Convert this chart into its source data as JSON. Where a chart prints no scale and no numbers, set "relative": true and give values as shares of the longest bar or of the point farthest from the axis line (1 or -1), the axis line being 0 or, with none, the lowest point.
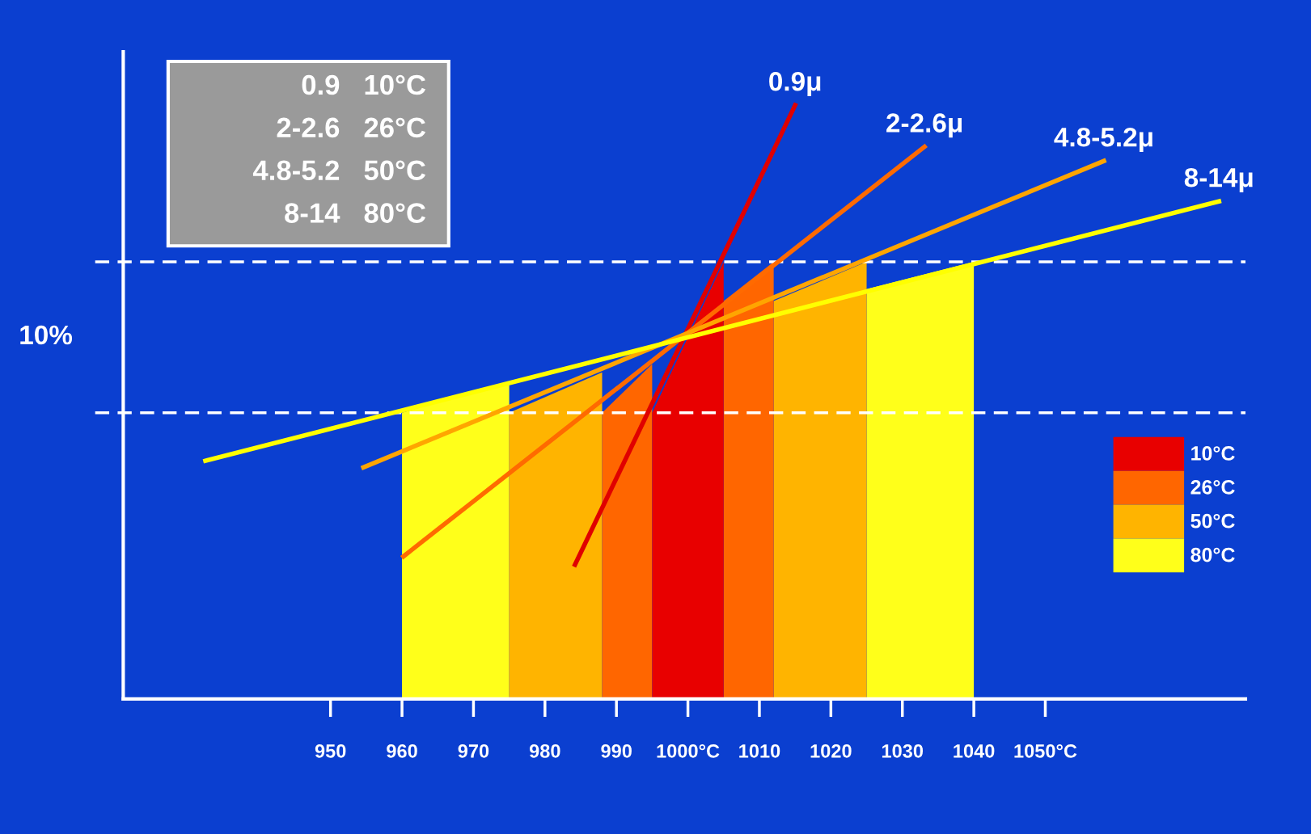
{
  "chart_data": {
    "type": "line",
    "relative": true,
    "xlim": [
      921,
      1078
    ],
    "xticks": [
      {
        "value": 950,
        "label": "950"
      },
      {
        "value": 960,
        "label": "960"
      },
      {
        "value": 970,
        "label": "970"
      },
      {
        "value": 980,
        "label": "980"
      },
      {
        "value": 990,
        "label": "990"
      },
      {
        "value": 1000,
        "label": "1000°C"
      },
      {
        "value": 1010,
        "label": "1010"
      },
      {
        "value": 1020,
        "label": "1020"
      },
      {
        "value": 1030,
        "label": "1030"
      },
      {
        "value": 1040,
        "label": "1040"
      },
      {
        "value": 1050,
        "label": "1050°C"
      }
    ],
    "series": [
      {
        "type": "area",
        "name": "80°C",
        "color": "#ffff1a",
        "x": [
          960,
          975
        ],
        "values": [
          0.482,
          0.533
        ]
      },
      {
        "type": "area",
        "color": "#ffff1a",
        "x": [
          1025,
          1040
        ],
        "values": [
          0.69,
          0.736
        ]
      },
      {
        "type": "area",
        "name": "50°C",
        "color": "#ffb400",
        "x": [
          975,
          988
        ],
        "values": [
          0.482,
          0.55
        ]
      },
      {
        "type": "area",
        "color": "#ffb400",
        "x": [
          1012,
          1025
        ],
        "values": [
          0.67,
          0.736
        ]
      },
      {
        "type": "area",
        "name": "26°C",
        "color": "#ff6600",
        "x": [
          988,
          995
        ],
        "values": [
          0.482,
          0.564
        ]
      },
      {
        "type": "area",
        "color": "#ff6600",
        "x": [
          1005,
          1012
        ],
        "values": [
          0.67,
          0.736
        ]
      },
      {
        "type": "area",
        "name": "10°C",
        "color": "#e80000",
        "x": [
          995,
          1005
        ],
        "values": [
          0.482,
          0.736
        ]
      },
      {
        "type": "line",
        "name": "0.9μ",
        "color": "#e00000",
        "x": [
          984.2,
          1015.0
        ],
        "values": [
          0.226,
          1.0
        ]
      },
      {
        "type": "line",
        "name": "2-2.6μ",
        "color": "#ff6a00",
        "x": [
          960.2,
          1033.1
        ],
        "values": [
          0.24,
          0.93
        ]
      },
      {
        "type": "line",
        "name": "4.8-5.2μ",
        "color": "#ffa500",
        "x": [
          954.6,
          1058.2
        ],
        "values": [
          0.39,
          0.906
        ]
      },
      {
        "type": "line",
        "name": "8-14μ",
        "color": "#ffff00",
        "x": [
          932.5,
          1074.3
        ],
        "values": [
          0.401,
          0.838
        ]
      }
    ],
    "ref_lines": [
      {
        "axis": "y",
        "value": 0.736,
        "color": "#ffffff",
        "line_style": "dashed"
      },
      {
        "axis": "y",
        "value": 0.482,
        "color": "#ffffff",
        "line_style": "dashed"
      }
    ],
    "annotations": [
      "10%",
      "0.9   10°C",
      "2-2.6   26°C",
      "4.8-5.2   50°C",
      "8-14   80°C"
    ],
    "legend": "right",
    "grid": false
  }
}
